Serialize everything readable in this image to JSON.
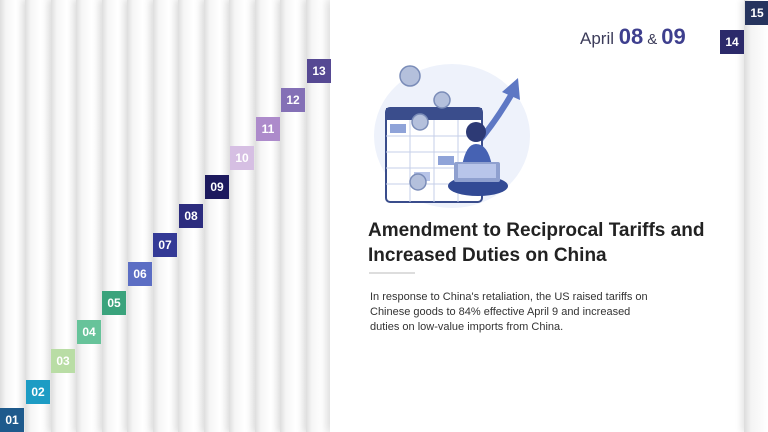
{
  "steps": [
    {
      "label": "01",
      "color": "#1e5a8c"
    },
    {
      "label": "02",
      "color": "#1d9cc4"
    },
    {
      "label": "03",
      "color": "#b9dda5"
    },
    {
      "label": "04",
      "color": "#67c39a"
    },
    {
      "label": "05",
      "color": "#3aa37c"
    },
    {
      "label": "06",
      "color": "#5c6ec4"
    },
    {
      "label": "07",
      "color": "#343a96"
    },
    {
      "label": "08",
      "color": "#2c2c7e"
    },
    {
      "label": "09",
      "color": "#1d1a5e"
    },
    {
      "label": "10",
      "color": "#d6bfe3"
    },
    {
      "label": "11",
      "color": "#ad8bcb"
    },
    {
      "label": "12",
      "color": "#8470b6"
    },
    {
      "label": "13",
      "color": "#564993"
    },
    {
      "label": "14",
      "color": "#2c2a6a"
    },
    {
      "label": "15",
      "color": "#26345e"
    }
  ],
  "date": {
    "prefix": "April",
    "day1": "08",
    "amp": "&",
    "day2": "09"
  },
  "title": "Amendment to Reciprocal Tariffs and Increased Duties on China",
  "body": "In response to China's retaliation, the US raised tariffs on Chinese goods to 84% effective April 9 and increased duties on low-value imports from China.",
  "illustration": "woman-with-laptop-calendar-dollar-coins-illustration"
}
